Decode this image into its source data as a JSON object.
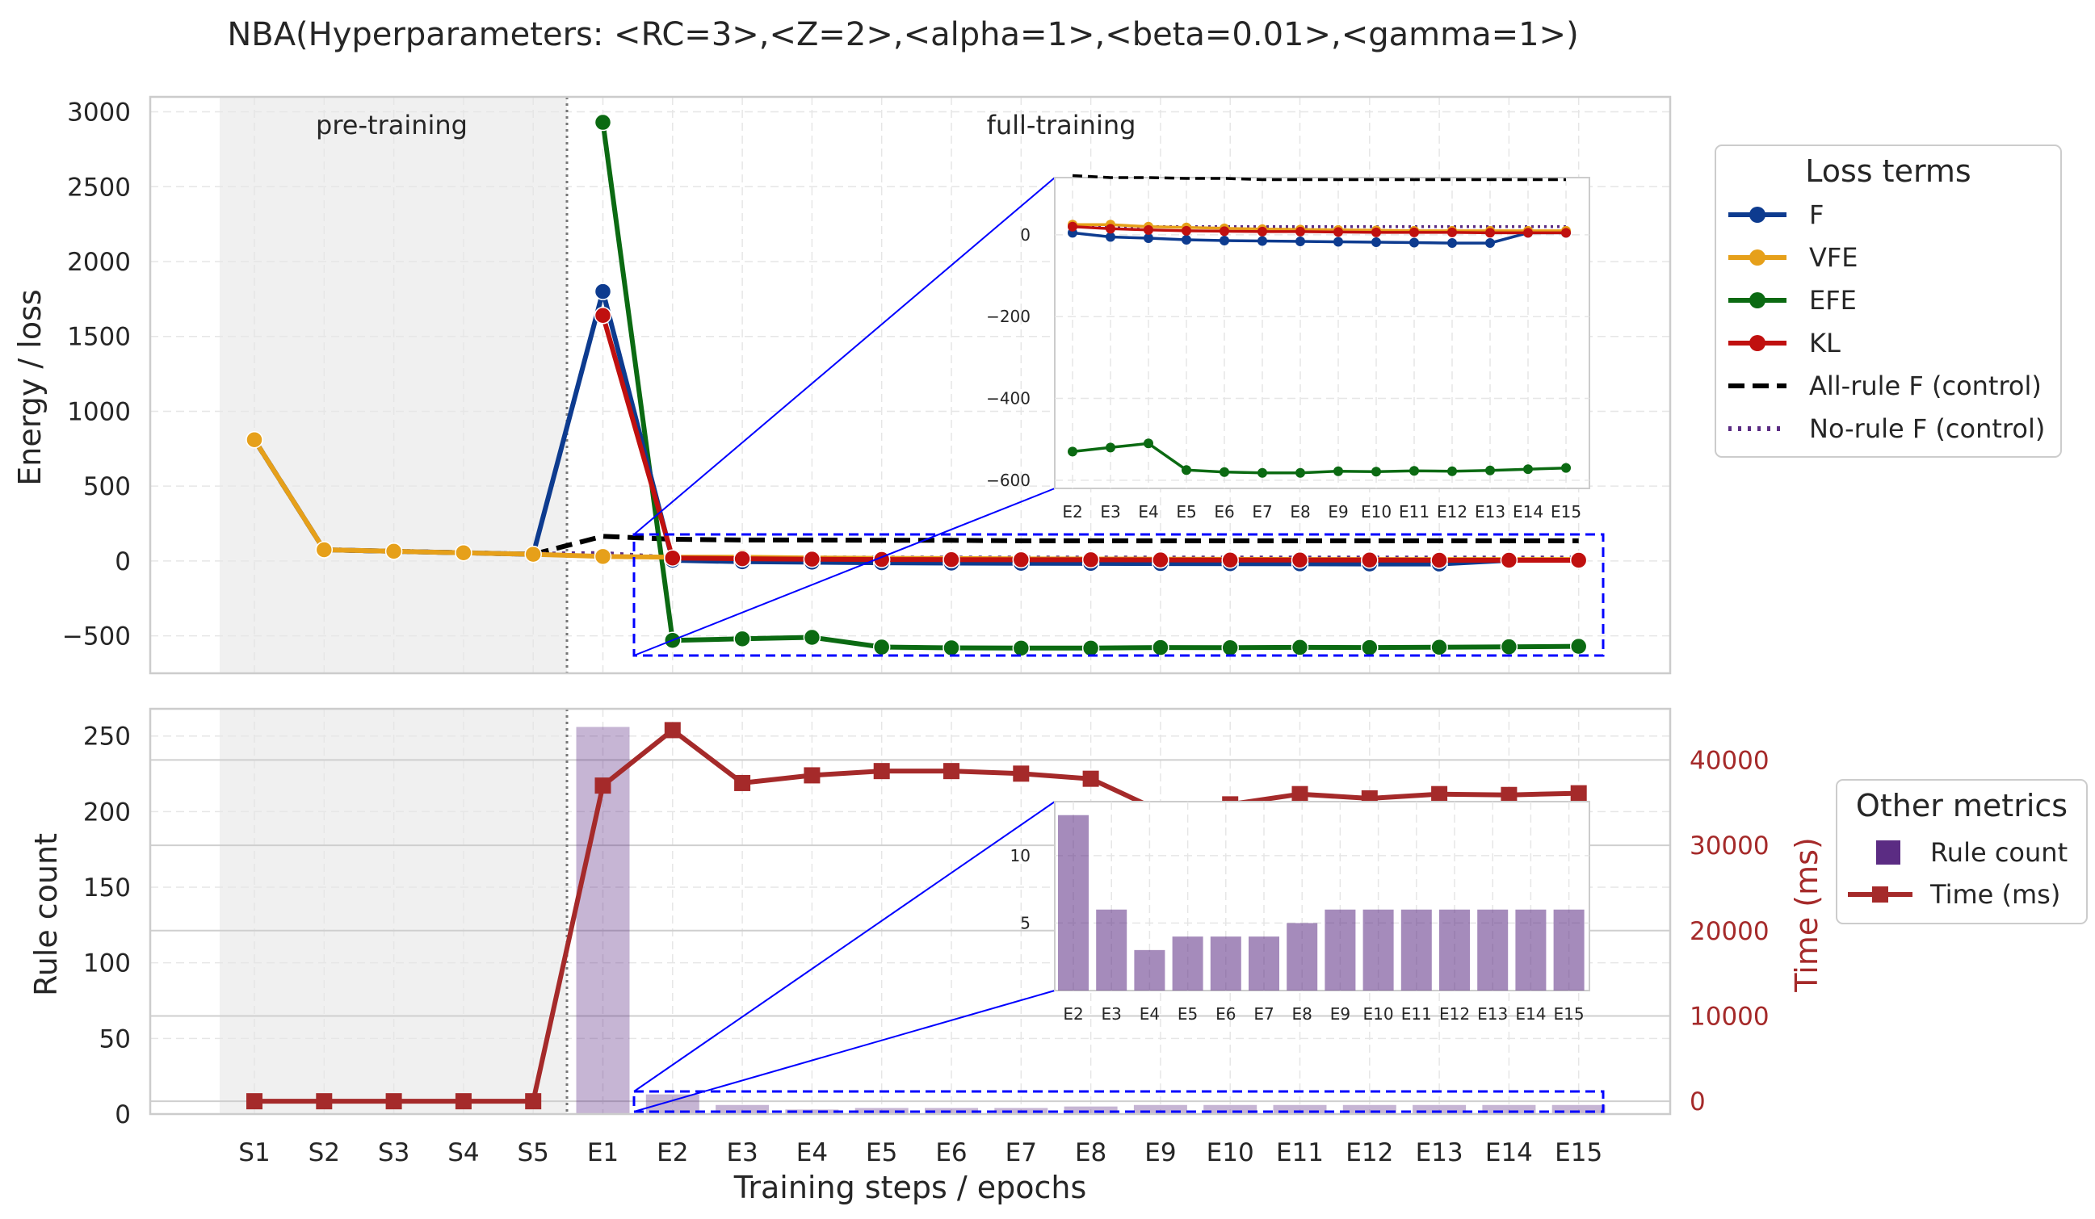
{
  "title": "NBA(Hyperparameters: <RC=3>,<Z=2>,<alpha=1>,<beta=0.01>,<gamma=1>)",
  "xlabel": "Training steps / epochs",
  "regions": {
    "pre": "pre-training",
    "full": "full-training"
  },
  "colors": {
    "F": "#0d3b8f",
    "VFE": "#e6a01a",
    "EFE": "#0b6a12",
    "KL": "#c0100f",
    "allrule": "#000000",
    "norule": "#5b2c83",
    "rulecount": "#5b2c83",
    "time": "#a52a2a",
    "inset": "#0000ff",
    "shade": "#f0f0f0"
  },
  "legend_top": {
    "title": "Loss terms",
    "items": [
      "F",
      "VFE",
      "EFE",
      "KL",
      "All-rule F (control)",
      "No-rule F (control)"
    ]
  },
  "legend_bottom": {
    "title": "Other metrics",
    "items": [
      "Rule count",
      "Time (ms)"
    ]
  },
  "chart_data": [
    {
      "type": "line",
      "ylabel": "Energy / loss",
      "ylim": [
        -750,
        3100
      ],
      "yticks": [
        3000,
        2500,
        2000,
        1500,
        1000,
        500,
        0,
        -500
      ],
      "categories": [
        "S1",
        "S2",
        "S3",
        "S4",
        "S5",
        "E1",
        "E2",
        "E3",
        "E4",
        "E5",
        "E6",
        "E7",
        "E8",
        "E9",
        "E10",
        "E11",
        "E12",
        "E13",
        "E14",
        "E15"
      ],
      "grid": true,
      "legend_position": "right",
      "series": [
        {
          "name": "F",
          "values": [
            810,
            75,
            65,
            55,
            45,
            1800,
            5,
            -5,
            -8,
            -12,
            -14,
            -15,
            -16,
            -17,
            -18,
            -19,
            -20,
            -20,
            5,
            5
          ]
        },
        {
          "name": "VFE",
          "values": [
            810,
            75,
            65,
            55,
            45,
            30,
            25,
            25,
            20,
            18,
            16,
            14,
            13,
            12,
            11,
            10,
            10,
            10,
            10,
            10
          ]
        },
        {
          "name": "EFE",
          "values": [
            null,
            null,
            null,
            null,
            null,
            2930,
            -530,
            -520,
            -510,
            -575,
            -580,
            -582,
            -582,
            -578,
            -579,
            -577,
            -578,
            -576,
            -573,
            -570
          ]
        },
        {
          "name": "KL",
          "values": [
            null,
            null,
            null,
            null,
            null,
            1640,
            20,
            15,
            12,
            10,
            9,
            8,
            8,
            7,
            6,
            6,
            6,
            5,
            5,
            5
          ]
        },
        {
          "name": "All-rule F (control)",
          "values": [
            810,
            75,
            65,
            55,
            45,
            165,
            145,
            140,
            140,
            138,
            138,
            135,
            135,
            135,
            135,
            135,
            135,
            135,
            135,
            135
          ]
        },
        {
          "name": "No-rule F (control)",
          "values": [
            810,
            75,
            65,
            55,
            45,
            50,
            20,
            20,
            20,
            20,
            20,
            20,
            20,
            20,
            20,
            20,
            20,
            20,
            20,
            20
          ]
        }
      ],
      "inset": {
        "categories": [
          "E2",
          "E3",
          "E4",
          "E5",
          "E6",
          "E7",
          "E8",
          "E9",
          "E10",
          "E11",
          "E12",
          "E13",
          "E14",
          "E15"
        ],
        "ylim": [
          -620,
          140
        ],
        "yticks": [
          "0",
          "−200",
          "−400",
          "−600"
        ]
      }
    },
    {
      "type": "bar",
      "ylabel": "Rule count",
      "y2label": "Time (ms)",
      "ylim": [
        0,
        268
      ],
      "yticks": [
        250,
        200,
        150,
        100,
        50,
        0
      ],
      "y2lim": [
        -1500,
        46000
      ],
      "y2ticks": [
        "40000",
        "30000",
        "20000",
        "10000",
        "0"
      ],
      "categories": [
        "S1",
        "S2",
        "S3",
        "S4",
        "S5",
        "E1",
        "E2",
        "E3",
        "E4",
        "E5",
        "E6",
        "E7",
        "E8",
        "E9",
        "E10",
        "E11",
        "E12",
        "E13",
        "E14",
        "E15"
      ],
      "series": [
        {
          "name": "Rule count",
          "values": [
            null,
            null,
            null,
            null,
            null,
            256,
            13,
            6,
            3,
            4,
            4,
            4,
            5,
            6,
            6,
            6,
            6,
            6,
            6,
            6
          ]
        },
        {
          "name": "Time (ms)",
          "values": [
            0,
            0,
            0,
            0,
            0,
            37000,
            43500,
            37300,
            38200,
            38700,
            38700,
            38400,
            37800,
            34000,
            34800,
            36000,
            35500,
            36000,
            35900,
            36100
          ]
        }
      ],
      "inset": {
        "categories": [
          "E2",
          "E3",
          "E4",
          "E5",
          "E6",
          "E7",
          "E8",
          "E9",
          "E10",
          "E11",
          "E12",
          "E13",
          "E14",
          "E15"
        ],
        "ylim": [
          0,
          14
        ],
        "yticks": [
          "10",
          "5"
        ]
      }
    }
  ]
}
